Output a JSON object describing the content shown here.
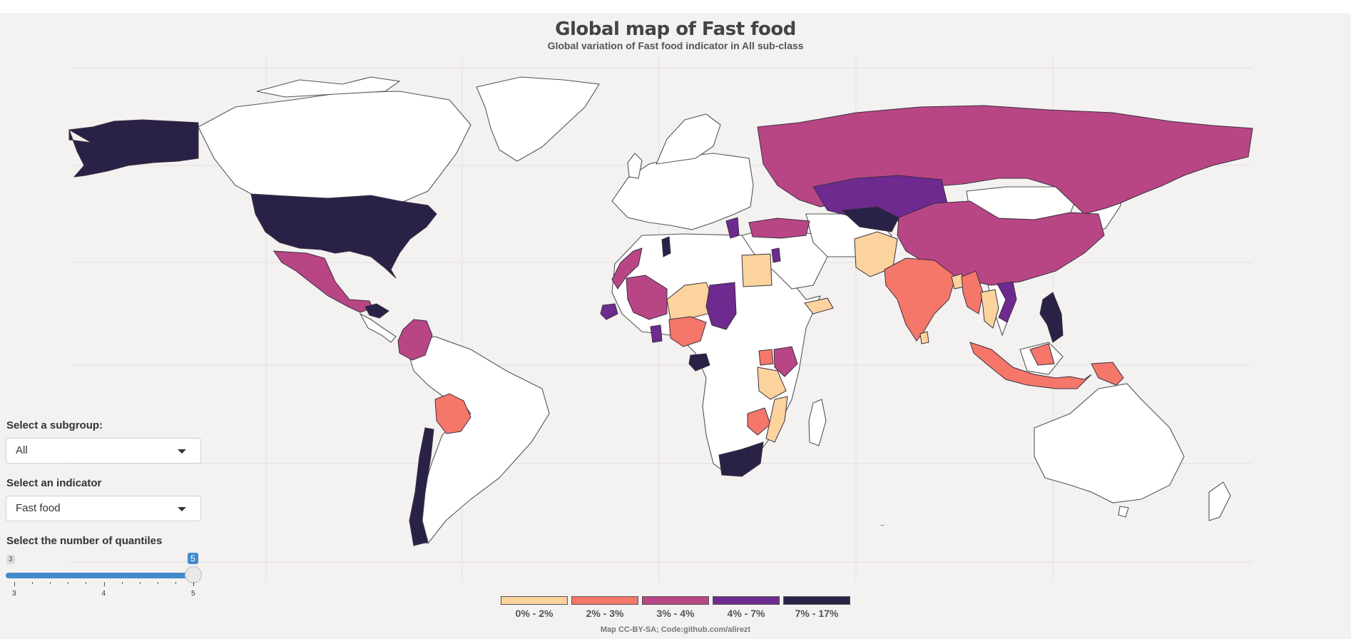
{
  "title": "Global map of Fast food",
  "subtitle": "Global variation of Fast food indicator in All sub-class",
  "controls": {
    "subgroup_label": "Select a subgroup:",
    "subgroup_value": "All",
    "indicator_label": "Select an indicator",
    "indicator_value": "Fast food",
    "quantiles_label": "Select the number of quantiles",
    "slider": {
      "min": 3,
      "max": 5,
      "value": 5,
      "min_tag": "3",
      "value_tag": "5",
      "tick_labels": [
        "3",
        "4",
        "5"
      ]
    }
  },
  "legend": [
    {
      "label": "0% - 2%",
      "color": "#fcd39c"
    },
    {
      "label": "2% - 3%",
      "color": "#f4776a"
    },
    {
      "label": "3% - 4%",
      "color": "#b84685"
    },
    {
      "label": "4% - 7%",
      "color": "#6e2a8f"
    },
    {
      "label": "7% - 17%",
      "color": "#2a2147"
    }
  ],
  "footer": "Map CC-BY-SA; Code:github.com/alirezt",
  "colors": {
    "background": "#f4f1f1",
    "no_data": "#ffffff",
    "border": "#555555"
  },
  "regions": [
    {
      "name": "Alaska",
      "class": 4
    },
    {
      "name": "United States",
      "class": 4
    },
    {
      "name": "Mexico",
      "class": 2
    },
    {
      "name": "Honduras",
      "class": 4
    },
    {
      "name": "Colombia",
      "class": 2
    },
    {
      "name": "Bolivia",
      "class": 1
    },
    {
      "name": "Chile",
      "class": 4
    },
    {
      "name": "Morocco",
      "class": 2
    },
    {
      "name": "Tunisia",
      "class": 4
    },
    {
      "name": "Egypt",
      "class": 0
    },
    {
      "name": "Mali",
      "class": 2
    },
    {
      "name": "Niger",
      "class": 0
    },
    {
      "name": "Chad",
      "class": 3
    },
    {
      "name": "Nigeria",
      "class": 1
    },
    {
      "name": "Senegal",
      "class": 3
    },
    {
      "name": "Ghana",
      "class": 3
    },
    {
      "name": "Gabon",
      "class": 4
    },
    {
      "name": "Kenya",
      "class": 2
    },
    {
      "name": "Uganda",
      "class": 1
    },
    {
      "name": "Tanzania",
      "class": 0
    },
    {
      "name": "Zambia",
      "class": 1
    },
    {
      "name": "Mozambique",
      "class": 0
    },
    {
      "name": "South Africa",
      "class": 4
    },
    {
      "name": "Yemen",
      "class": 0
    },
    {
      "name": "Jordan",
      "class": 3
    },
    {
      "name": "Turkey",
      "class": 2
    },
    {
      "name": "Greece",
      "class": 3
    },
    {
      "name": "Russia",
      "class": 2
    },
    {
      "name": "Kazakhstan",
      "class": 3
    },
    {
      "name": "Kyrgyzstan",
      "class": 4
    },
    {
      "name": "China",
      "class": 2
    },
    {
      "name": "Pakistan",
      "class": 0
    },
    {
      "name": "India",
      "class": 1
    },
    {
      "name": "Sri Lanka",
      "class": 0
    },
    {
      "name": "Bangladesh",
      "class": 0
    },
    {
      "name": "Myanmar",
      "class": 1
    },
    {
      "name": "Thailand",
      "class": 0
    },
    {
      "name": "Vietnam",
      "class": 3
    },
    {
      "name": "Philippines",
      "class": 4
    },
    {
      "name": "Indonesia",
      "class": 1
    },
    {
      "name": "Papua New Guinea",
      "class": 1
    }
  ]
}
